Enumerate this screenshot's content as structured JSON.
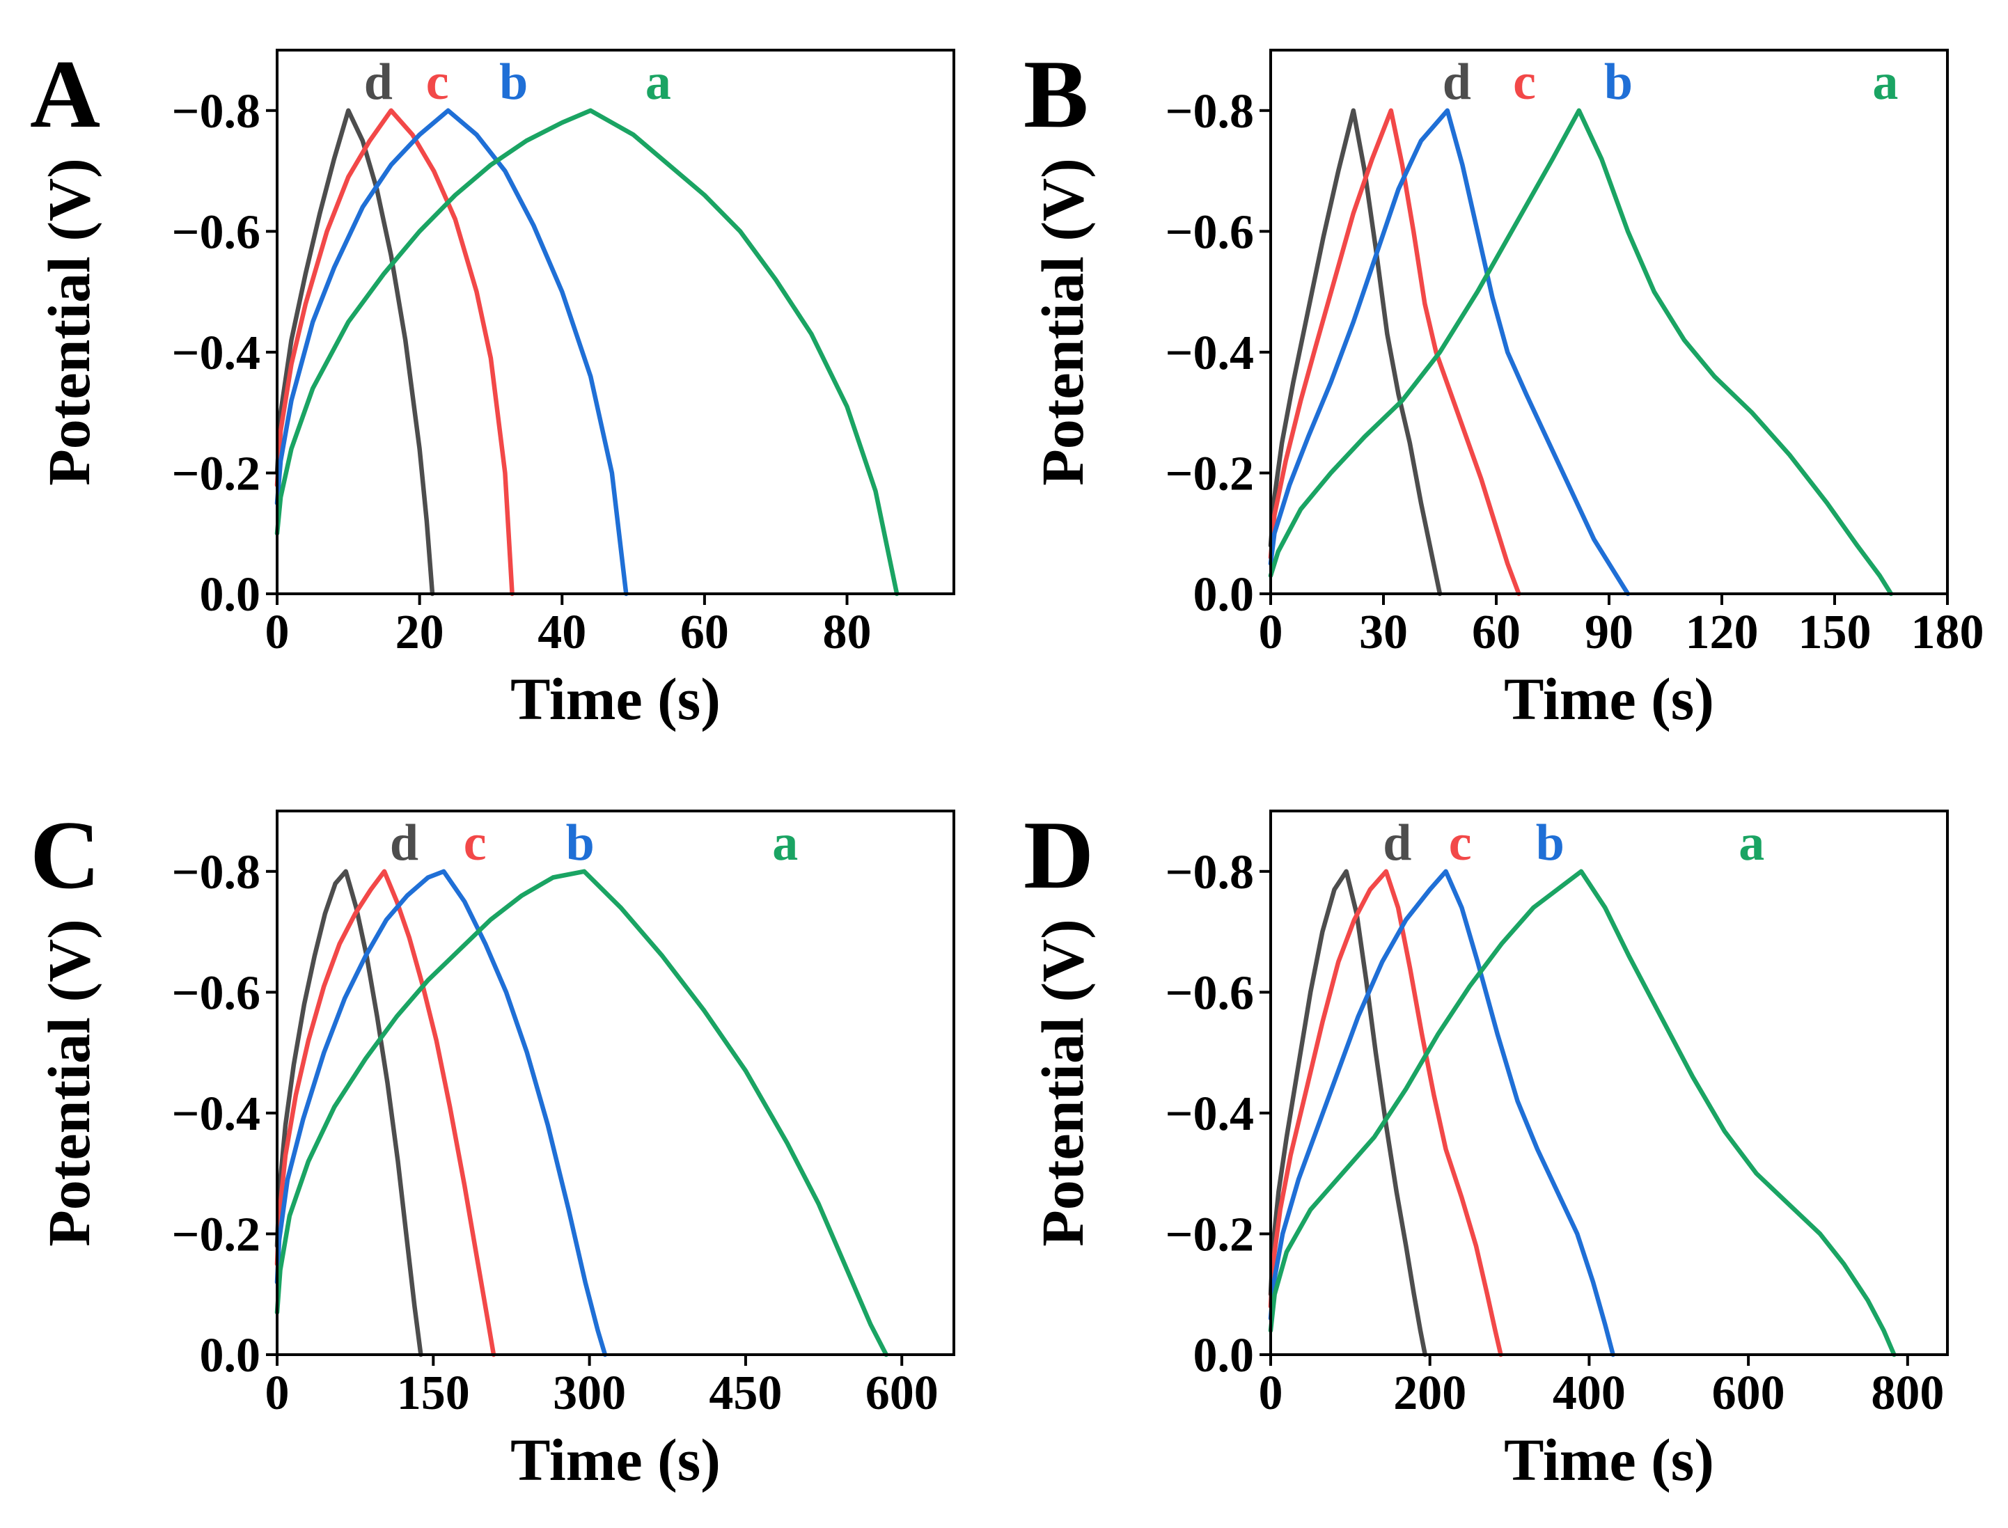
{
  "chart_data": [
    {
      "type": "line",
      "panel_label": "A",
      "xlabel": "Time (s)",
      "ylabel": "Potential (V)",
      "xlim": [
        0,
        95
      ],
      "ylim": [
        0,
        -0.9
      ],
      "xticks": [
        0,
        20,
        40,
        60,
        80
      ],
      "xtick_labels": [
        "0",
        "20",
        "40",
        "60",
        "80"
      ],
      "yticks": [
        0,
        -0.2,
        -0.4,
        -0.6,
        -0.8
      ],
      "ytick_labels": [
        "0.0",
        "−0.2",
        "−0.4",
        "−0.6",
        "−0.8"
      ],
      "grid": false,
      "series": [
        {
          "name": "d",
          "color": "#4d4d4d",
          "x": [
            0,
            0.5,
            2,
            4,
            6,
            8,
            10,
            12,
            14,
            16,
            18,
            20,
            21,
            21.8
          ],
          "y": [
            -0.2,
            -0.3,
            -0.42,
            -0.53,
            -0.63,
            -0.72,
            -0.8,
            -0.75,
            -0.67,
            -0.56,
            -0.42,
            -0.24,
            -0.12,
            0.0
          ]
        },
        {
          "name": "c",
          "color": "#f24848",
          "x": [
            0,
            0.5,
            2,
            4,
            7,
            10,
            13,
            16,
            19,
            22,
            25,
            28,
            30,
            32,
            33
          ],
          "y": [
            -0.18,
            -0.27,
            -0.38,
            -0.48,
            -0.6,
            -0.69,
            -0.75,
            -0.8,
            -0.76,
            -0.7,
            -0.62,
            -0.5,
            -0.39,
            -0.2,
            0.0
          ]
        },
        {
          "name": "b",
          "color": "#1f6fd6",
          "x": [
            0,
            0.5,
            2,
            5,
            8,
            12,
            16,
            20,
            24,
            28,
            32,
            36,
            40,
            44,
            47,
            49
          ],
          "y": [
            -0.15,
            -0.22,
            -0.32,
            -0.45,
            -0.54,
            -0.64,
            -0.71,
            -0.76,
            -0.8,
            -0.76,
            -0.7,
            -0.61,
            -0.5,
            -0.36,
            -0.2,
            0.0
          ]
        },
        {
          "name": "a",
          "color": "#1aa463",
          "x": [
            0,
            0.5,
            2,
            5,
            10,
            15,
            20,
            25,
            30,
            35,
            40,
            44,
            50,
            55,
            60,
            65,
            70,
            75,
            80,
            84,
            87
          ],
          "y": [
            -0.1,
            -0.16,
            -0.24,
            -0.34,
            -0.45,
            -0.53,
            -0.6,
            -0.66,
            -0.71,
            -0.75,
            -0.78,
            -0.8,
            -0.76,
            -0.71,
            -0.66,
            -0.6,
            -0.52,
            -0.43,
            -0.31,
            -0.17,
            0.0
          ]
        }
      ]
    },
    {
      "type": "line",
      "panel_label": "B",
      "xlabel": "Time (s)",
      "ylabel": "Potential (V)",
      "xlim": [
        0,
        180
      ],
      "ylim": [
        0,
        -0.9
      ],
      "xticks": [
        0,
        30,
        60,
        90,
        120,
        150,
        180
      ],
      "xtick_labels": [
        "0",
        "30",
        "60",
        "90",
        "120",
        "150",
        "180"
      ],
      "yticks": [
        0,
        -0.2,
        -0.4,
        -0.6,
        -0.8
      ],
      "ytick_labels": [
        "0.0",
        "−0.2",
        "−0.4",
        "−0.6",
        "−0.8"
      ],
      "grid": false,
      "series": [
        {
          "name": "d",
          "color": "#4d4d4d",
          "x": [
            0,
            1,
            3,
            6,
            10,
            14,
            18,
            22,
            25,
            28,
            31,
            34,
            37,
            40,
            43,
            45
          ],
          "y": [
            -0.08,
            -0.16,
            -0.25,
            -0.35,
            -0.47,
            -0.59,
            -0.7,
            -0.8,
            -0.7,
            -0.57,
            -0.43,
            -0.33,
            -0.25,
            -0.15,
            -0.06,
            0.0
          ]
        },
        {
          "name": "c",
          "color": "#f24848",
          "x": [
            0,
            1,
            4,
            8,
            12,
            17,
            22,
            27,
            32,
            35,
            38,
            41,
            44,
            48,
            52,
            56,
            60,
            63,
            66
          ],
          "y": [
            -0.06,
            -0.13,
            -0.22,
            -0.32,
            -0.41,
            -0.52,
            -0.63,
            -0.72,
            -0.8,
            -0.71,
            -0.6,
            -0.48,
            -0.4,
            -0.33,
            -0.26,
            -0.19,
            -0.11,
            -0.05,
            0.0
          ]
        },
        {
          "name": "b",
          "color": "#1f6fd6",
          "x": [
            0,
            1,
            5,
            10,
            16,
            22,
            28,
            34,
            40,
            47,
            51,
            55,
            59,
            63,
            68,
            74,
            80,
            86,
            91,
            95
          ],
          "y": [
            -0.05,
            -0.1,
            -0.18,
            -0.26,
            -0.35,
            -0.45,
            -0.56,
            -0.67,
            -0.75,
            -0.8,
            -0.71,
            -0.6,
            -0.49,
            -0.4,
            -0.33,
            -0.25,
            -0.17,
            -0.09,
            -0.04,
            0.0
          ]
        },
        {
          "name": "a",
          "color": "#1aa463",
          "x": [
            0,
            2,
            8,
            16,
            25,
            35,
            45,
            55,
            65,
            75,
            82,
            88,
            95,
            102,
            110,
            118,
            128,
            138,
            148,
            156,
            162,
            165
          ],
          "y": [
            -0.03,
            -0.07,
            -0.14,
            -0.2,
            -0.26,
            -0.32,
            -0.4,
            -0.5,
            -0.61,
            -0.72,
            -0.8,
            -0.72,
            -0.6,
            -0.5,
            -0.42,
            -0.36,
            -0.3,
            -0.23,
            -0.15,
            -0.08,
            -0.03,
            0.0
          ]
        }
      ]
    },
    {
      "type": "line",
      "panel_label": "C",
      "xlabel": "Time (s)",
      "ylabel": "Potential (V)",
      "xlim": [
        0,
        650
      ],
      "ylim": [
        0,
        -0.9
      ],
      "xticks": [
        0,
        150,
        300,
        450,
        600
      ],
      "xtick_labels": [
        "0",
        "150",
        "300",
        "450",
        "600"
      ],
      "yticks": [
        0,
        -0.2,
        -0.4,
        -0.6,
        -0.8
      ],
      "ytick_labels": [
        "0.0",
        "−0.2",
        "−0.4",
        "−0.6",
        "−0.8"
      ],
      "grid": false,
      "series": [
        {
          "name": "d",
          "color": "#4d4d4d",
          "x": [
            0,
            2,
            8,
            16,
            26,
            36,
            46,
            56,
            66,
            76,
            86,
            96,
            106,
            116,
            124,
            132,
            138
          ],
          "y": [
            -0.18,
            -0.27,
            -0.38,
            -0.48,
            -0.58,
            -0.66,
            -0.73,
            -0.78,
            -0.8,
            -0.74,
            -0.66,
            -0.56,
            -0.45,
            -0.32,
            -0.2,
            -0.08,
            0.0
          ]
        },
        {
          "name": "c",
          "color": "#f24848",
          "x": [
            0,
            2,
            8,
            18,
            30,
            45,
            60,
            75,
            90,
            103,
            115,
            127,
            140,
            153,
            166,
            180,
            192,
            202,
            208
          ],
          "y": [
            -0.15,
            -0.23,
            -0.33,
            -0.43,
            -0.52,
            -0.61,
            -0.68,
            -0.73,
            -0.77,
            -0.8,
            -0.75,
            -0.69,
            -0.61,
            -0.52,
            -0.41,
            -0.28,
            -0.16,
            -0.06,
            0.0
          ]
        },
        {
          "name": "b",
          "color": "#1f6fd6",
          "x": [
            0,
            2,
            10,
            25,
            45,
            65,
            85,
            105,
            125,
            145,
            160,
            180,
            200,
            220,
            240,
            260,
            280,
            296,
            308,
            315
          ],
          "y": [
            -0.12,
            -0.19,
            -0.29,
            -0.39,
            -0.5,
            -0.59,
            -0.66,
            -0.72,
            -0.76,
            -0.79,
            -0.8,
            -0.75,
            -0.68,
            -0.6,
            -0.5,
            -0.38,
            -0.24,
            -0.12,
            -0.04,
            0.0
          ]
        },
        {
          "name": "a",
          "color": "#1aa463",
          "x": [
            0,
            3,
            12,
            30,
            55,
            85,
            115,
            145,
            175,
            205,
            235,
            265,
            295,
            330,
            370,
            410,
            450,
            490,
            520,
            550,
            570,
            585
          ],
          "y": [
            -0.07,
            -0.14,
            -0.23,
            -0.32,
            -0.41,
            -0.49,
            -0.56,
            -0.62,
            -0.67,
            -0.72,
            -0.76,
            -0.79,
            -0.8,
            -0.74,
            -0.66,
            -0.57,
            -0.47,
            -0.35,
            -0.25,
            -0.13,
            -0.05,
            0.0
          ]
        }
      ]
    },
    {
      "type": "line",
      "panel_label": "D",
      "xlabel": "Time (s)",
      "ylabel": "Potential (V)",
      "xlim": [
        0,
        850
      ],
      "ylim": [
        0,
        -0.9
      ],
      "xticks": [
        0,
        200,
        400,
        600,
        800
      ],
      "xtick_labels": [
        "0",
        "200",
        "400",
        "600",
        "800"
      ],
      "yticks": [
        0,
        -0.2,
        -0.4,
        -0.6,
        -0.8
      ],
      "ytick_labels": [
        "0.0",
        "−0.2",
        "−0.4",
        "−0.6",
        "−0.8"
      ],
      "grid": false,
      "series": [
        {
          "name": "d",
          "color": "#4d4d4d",
          "x": [
            0,
            3,
            10,
            20,
            35,
            50,
            65,
            80,
            95,
            108,
            120,
            132,
            145,
            158,
            170,
            180,
            188,
            194
          ],
          "y": [
            -0.1,
            -0.18,
            -0.27,
            -0.36,
            -0.48,
            -0.6,
            -0.7,
            -0.77,
            -0.8,
            -0.73,
            -0.62,
            -0.5,
            -0.38,
            -0.27,
            -0.18,
            -0.1,
            -0.04,
            0.0
          ]
        },
        {
          "name": "c",
          "color": "#f24848",
          "x": [
            0,
            3,
            12,
            25,
            45,
            65,
            85,
            105,
            125,
            145,
            160,
            175,
            190,
            205,
            220,
            240,
            258,
            272,
            282,
            289
          ],
          "y": [
            -0.08,
            -0.15,
            -0.24,
            -0.33,
            -0.44,
            -0.55,
            -0.65,
            -0.72,
            -0.77,
            -0.8,
            -0.74,
            -0.64,
            -0.53,
            -0.43,
            -0.34,
            -0.26,
            -0.18,
            -0.1,
            -0.04,
            0.0
          ]
        },
        {
          "name": "b",
          "color": "#1f6fd6",
          "x": [
            0,
            4,
            15,
            35,
            60,
            85,
            110,
            140,
            170,
            200,
            220,
            240,
            260,
            285,
            310,
            335,
            360,
            385,
            405,
            420,
            430
          ],
          "y": [
            -0.06,
            -0.12,
            -0.2,
            -0.29,
            -0.38,
            -0.47,
            -0.56,
            -0.65,
            -0.72,
            -0.77,
            -0.8,
            -0.74,
            -0.65,
            -0.53,
            -0.42,
            -0.34,
            -0.27,
            -0.2,
            -0.12,
            -0.05,
            0.0
          ]
        },
        {
          "name": "a",
          "color": "#1aa463",
          "x": [
            0,
            5,
            20,
            50,
            90,
            130,
            170,
            210,
            250,
            290,
            330,
            360,
            390,
            420,
            450,
            490,
            530,
            570,
            610,
            650,
            690,
            720,
            750,
            770,
            783
          ],
          "y": [
            -0.04,
            -0.1,
            -0.17,
            -0.24,
            -0.3,
            -0.36,
            -0.44,
            -0.53,
            -0.61,
            -0.68,
            -0.74,
            -0.77,
            -0.8,
            -0.74,
            -0.66,
            -0.56,
            -0.46,
            -0.37,
            -0.3,
            -0.25,
            -0.2,
            -0.15,
            -0.09,
            -0.04,
            0.0
          ]
        }
      ]
    }
  ]
}
